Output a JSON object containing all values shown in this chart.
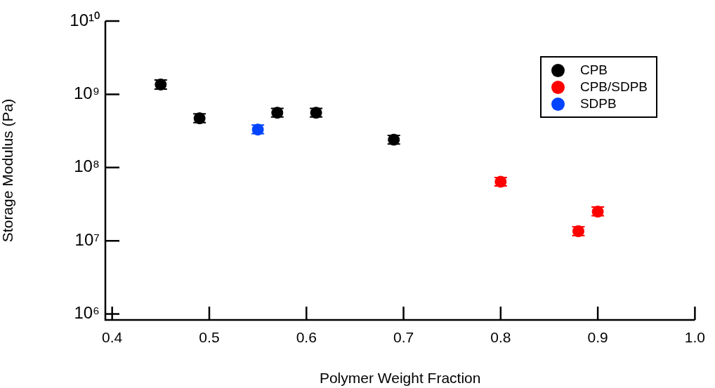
{
  "chart_data": {
    "type": "scatter",
    "xlabel": "Polymer Weight Fraction",
    "ylabel": "Storage Modulus (Pa)",
    "xlim": [
      0.393,
      1.0
    ],
    "xticks": [
      0.4,
      0.5,
      0.6,
      0.7,
      0.8,
      0.9,
      {
        "value": 1.0,
        "label": "1.0"
      }
    ],
    "ylim": [
      830000,
      10000000000
    ],
    "log": "y",
    "yticks": [
      {
        "value": 1000000,
        "label": "10⁶"
      },
      {
        "value": 10000000,
        "label": "10⁷"
      },
      {
        "value": 100000000,
        "label": "10⁸"
      },
      {
        "value": 1000000000,
        "label": "10⁹"
      },
      {
        "value": 10000000000,
        "label": "10¹⁰"
      }
    ],
    "grid": false,
    "legend": "top right",
    "marker": "circle",
    "series": [
      {
        "name": "CPB",
        "color": "#000000",
        "x": [
          0.45,
          0.49,
          0.57,
          0.61,
          0.69
        ],
        "values": [
          1360000000,
          470000000,
          560000000,
          560000000,
          240000000
        ],
        "errors": [
          [
            1180000000,
            1570000000
          ],
          [
            410000000,
            540000000
          ],
          [
            490000000,
            640000000
          ],
          [
            490000000,
            640000000
          ],
          [
            210000000,
            275000000
          ]
        ]
      },
      {
        "name": "CPB/SDPB",
        "color": "#ff0000",
        "x": [
          0.8,
          0.88,
          0.9
        ],
        "values": [
          64000000,
          13500000,
          25000000
        ],
        "errors": [
          [
            56000000,
            73000000
          ],
          [
            11800000,
            15500000
          ],
          [
            22000000,
            29000000
          ]
        ]
      },
      {
        "name": "SDPB",
        "color": "#0044ff",
        "x": [
          0.55
        ],
        "values": [
          330000000
        ],
        "errors": [
          [
            290000000,
            380000000
          ]
        ]
      }
    ]
  }
}
